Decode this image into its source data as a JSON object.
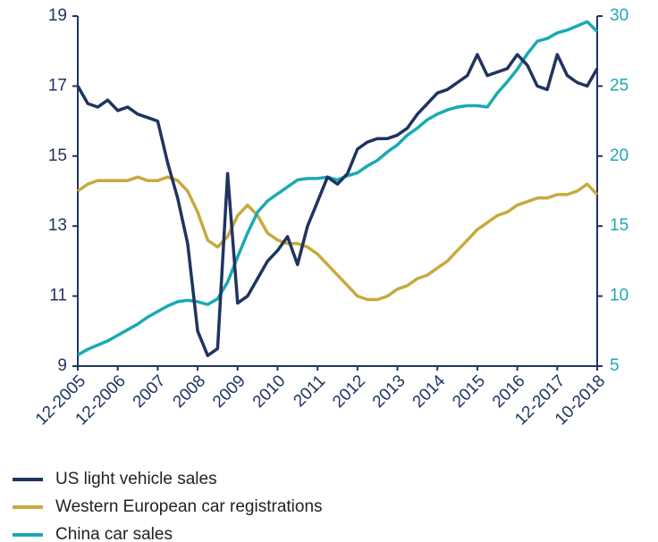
{
  "chart_data": {
    "type": "line",
    "categories": [
      "12-2005",
      null,
      null,
      null,
      "12-2006",
      null,
      null,
      null,
      "2007",
      null,
      null,
      null,
      "2008",
      null,
      null,
      null,
      "2009",
      null,
      null,
      null,
      "2010",
      null,
      null,
      null,
      "2011",
      null,
      null,
      null,
      "2012",
      null,
      null,
      null,
      "2013",
      null,
      null,
      null,
      "2014",
      null,
      null,
      null,
      "2015",
      null,
      null,
      null,
      "2016",
      null,
      null,
      null,
      "12-2017",
      null,
      null,
      null,
      "10-2018"
    ],
    "series": [
      {
        "name": "US light vehicle sales",
        "color": "#1f3461",
        "values": [
          17.0,
          16.5,
          16.4,
          16.6,
          16.3,
          16.4,
          16.2,
          16.1,
          16.0,
          14.8,
          13.8,
          12.5,
          10.0,
          9.3,
          9.5,
          14.5,
          10.8,
          11.0,
          11.5,
          12.0,
          12.3,
          12.7,
          11.9,
          13.0,
          13.7,
          14.4,
          14.2,
          14.5,
          15.2,
          15.4,
          15.5,
          15.5,
          15.6,
          15.8,
          16.2,
          16.5,
          16.8,
          16.9,
          17.1,
          17.3,
          17.9,
          17.3,
          17.4,
          17.5,
          17.9,
          17.6,
          17.0,
          16.9,
          17.9,
          17.3,
          17.1,
          17.0,
          17.5
        ]
      },
      {
        "name": "Western European car registrations",
        "color": "#c9a93e",
        "values": [
          14.0,
          14.2,
          14.3,
          14.3,
          14.3,
          14.3,
          14.4,
          14.3,
          14.3,
          14.4,
          14.3,
          14.0,
          13.4,
          12.6,
          12.4,
          12.7,
          13.3,
          13.6,
          13.3,
          12.8,
          12.6,
          12.5,
          12.5,
          12.4,
          12.2,
          11.9,
          11.6,
          11.3,
          11.0,
          10.9,
          10.9,
          11.0,
          11.2,
          11.3,
          11.5,
          11.6,
          11.8,
          12.0,
          12.3,
          12.6,
          12.9,
          13.1,
          13.3,
          13.4,
          13.6,
          13.7,
          13.8,
          13.8,
          13.9,
          13.9,
          14.0,
          14.2,
          13.9
        ]
      },
      {
        "name": "China car sales",
        "color": "#1aa9b5",
        "axis": "y2",
        "values": [
          5.8,
          6.2,
          6.5,
          6.8,
          7.2,
          7.6,
          8.0,
          8.5,
          8.9,
          9.3,
          9.6,
          9.7,
          9.6,
          9.4,
          9.8,
          11.0,
          12.8,
          14.5,
          16.0,
          16.8,
          17.3,
          17.8,
          18.3,
          18.4,
          18.4,
          18.5,
          18.3,
          18.6,
          18.8,
          19.3,
          19.7,
          20.3,
          20.8,
          21.5,
          22.0,
          22.6,
          23.0,
          23.3,
          23.5,
          23.6,
          23.6,
          23.5,
          24.5,
          25.3,
          26.2,
          27.3,
          28.2,
          28.4,
          28.8,
          29.0,
          29.3,
          29.6,
          28.9
        ]
      }
    ],
    "ylim": [
      9,
      19
    ],
    "yticks": [
      9,
      11,
      13,
      15,
      17,
      19
    ],
    "y2lim": [
      5,
      30
    ],
    "y2ticks": [
      5,
      10,
      15,
      20,
      25,
      30
    ],
    "ytick_color": "#1f3461",
    "y2tick_color": "#1aa9b5",
    "legend": "bottom-left"
  }
}
